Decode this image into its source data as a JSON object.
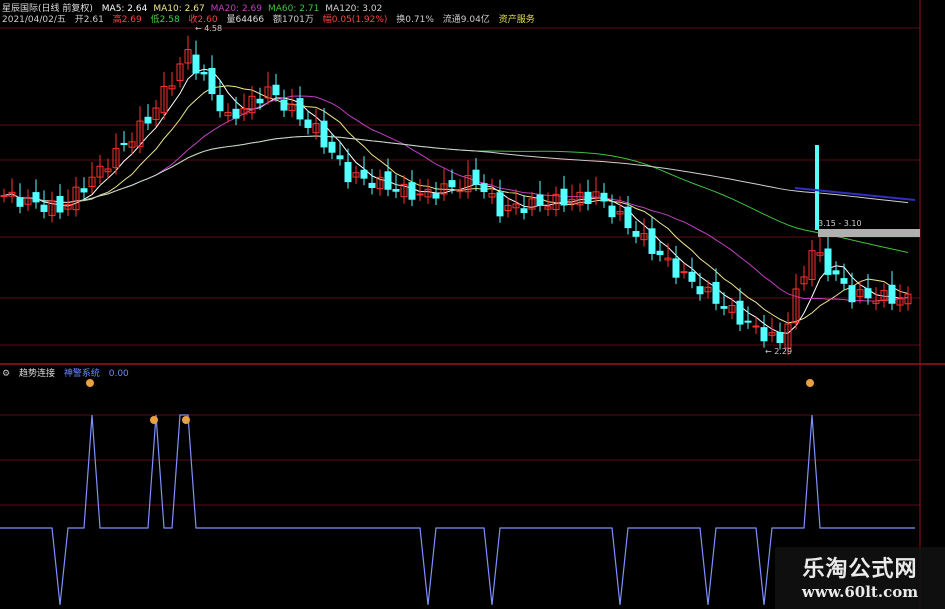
{
  "header": {
    "title": "星辰国际(日线 前复权)",
    "ma": [
      {
        "label": "MA5: 2.64",
        "color": "#ffffff"
      },
      {
        "label": "MA10: 2.67",
        "color": "#f0e68c"
      },
      {
        "label": "MA20: 2.69",
        "color": "#c040c0"
      },
      {
        "label": "MA60: 2.71",
        "color": "#40c040"
      },
      {
        "label": "MA120: 3.02",
        "color": "#d0d0d0"
      }
    ],
    "date": "2021/04/02/五",
    "open": "开2.61",
    "high": "高2.69",
    "low": "低2.58",
    "close": "收2.60",
    "volume": "量64466",
    "amount": "额1701万",
    "change": "幅0.05(1.92%)",
    "turnover": "换0.71%",
    "float": "流通9.04亿",
    "sector": "资产服务"
  },
  "indicator": {
    "name": "趋势连接",
    "sub": "神警系统",
    "value": "0.00"
  },
  "annotations": {
    "high": "4.58",
    "low": "2.29",
    "range": "3.15 - 3.10"
  },
  "watermark": {
    "line1": "乐淘公式网",
    "line2": "www.60lt.com"
  },
  "colors": {
    "up": "#ff3030",
    "down": "#54ffff",
    "signal": "#8090ff",
    "grid": "#5a0a14"
  },
  "chart_data": {
    "type": "candlestick",
    "close_keypoints": [
      [
        0,
        3.37
      ],
      [
        7,
        3.27
      ],
      [
        12,
        3.55
      ],
      [
        18,
        3.92
      ],
      [
        23,
        4.4
      ],
      [
        28,
        3.92
      ],
      [
        33,
        4.13
      ],
      [
        39,
        3.84
      ],
      [
        43,
        3.52
      ],
      [
        52,
        3.37
      ],
      [
        59,
        3.48
      ],
      [
        62,
        3.27
      ],
      [
        74,
        3.37
      ],
      [
        84,
        2.83
      ],
      [
        94,
        2.4
      ],
      [
        97,
        2.31
      ],
      [
        101,
        2.98
      ],
      [
        106,
        2.65
      ],
      [
        113,
        2.62
      ]
    ],
    "price_range": [
      2.29,
      4.58
    ],
    "indicator_peaks": [
      11,
      19,
      22,
      23,
      101
    ],
    "indicator_dips": [
      7,
      53,
      61,
      77,
      88,
      95
    ]
  }
}
